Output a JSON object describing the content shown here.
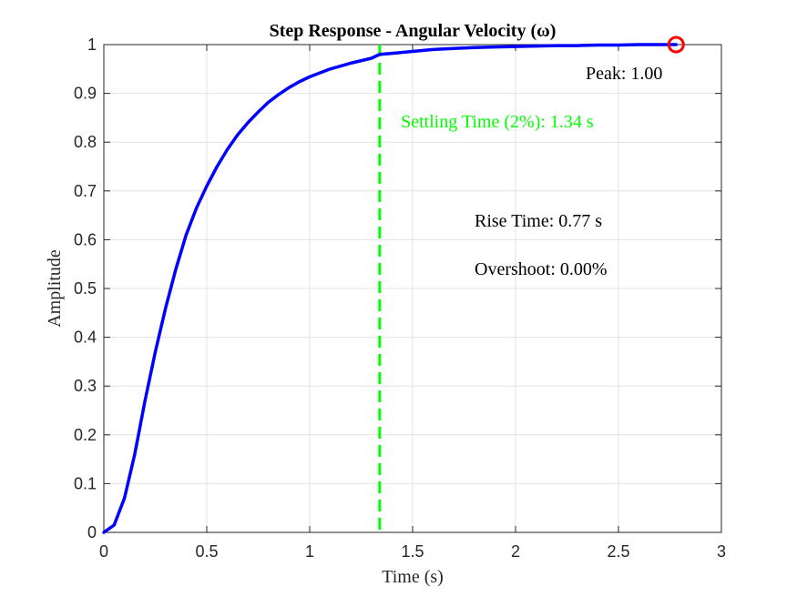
{
  "chart_data": {
    "type": "line",
    "title": "Step Response - Angular Velocity (ω)",
    "xlabel": "Time (s)",
    "ylabel": "Amplitude",
    "xlim": [
      0,
      3
    ],
    "ylim": [
      0,
      1
    ],
    "x_ticks": [
      0,
      0.5,
      1,
      1.5,
      2,
      2.5,
      3
    ],
    "x_tick_labels": [
      "0",
      "0.5",
      "1",
      "1.5",
      "2",
      "2.5",
      "3"
    ],
    "y_ticks": [
      0,
      0.1,
      0.2,
      0.3,
      0.4,
      0.5,
      0.6,
      0.7,
      0.8,
      0.9,
      1
    ],
    "y_tick_labels": [
      "0",
      "0.1",
      "0.2",
      "0.3",
      "0.4",
      "0.5",
      "0.6",
      "0.7",
      "0.8",
      "0.9",
      "1"
    ],
    "grid": true,
    "legend": "none",
    "series": [
      {
        "color": "#0000ff",
        "x": [
          0,
          0.05,
          0.1,
          0.15,
          0.2,
          0.25,
          0.3,
          0.35,
          0.4,
          0.45,
          0.5,
          0.55,
          0.6,
          0.65,
          0.7,
          0.75,
          0.8,
          0.85,
          0.9,
          0.95,
          1.0,
          1.1,
          1.2,
          1.3,
          1.34,
          1.4,
          1.5,
          1.6,
          1.7,
          1.8,
          1.9,
          2.0,
          2.1,
          2.2,
          2.3,
          2.4,
          2.5,
          2.6,
          2.7,
          2.78
        ],
        "y": [
          0,
          0.015,
          0.07,
          0.16,
          0.27,
          0.37,
          0.46,
          0.54,
          0.61,
          0.665,
          0.71,
          0.75,
          0.785,
          0.815,
          0.84,
          0.862,
          0.882,
          0.898,
          0.912,
          0.924,
          0.934,
          0.95,
          0.962,
          0.972,
          0.98,
          0.982,
          0.986,
          0.99,
          0.992,
          0.994,
          0.995,
          0.996,
          0.997,
          0.998,
          0.998,
          0.999,
          0.999,
          1.0,
          1.0,
          1.0
        ]
      }
    ],
    "settling_line": {
      "x": 1.34,
      "color": "#00ff00",
      "style": "dashed"
    },
    "peak_marker": {
      "x": 2.78,
      "y": 1.0,
      "color": "#ff0000",
      "shape": "circle"
    },
    "annotations": {
      "peak": {
        "text": "Peak: 1.00",
        "color": "#000000"
      },
      "settling": {
        "text": "Settling Time (2%): 1.34 s",
        "color": "#00ff00"
      },
      "rise": {
        "text": "Rise Time: 0.77 s",
        "color": "#000000"
      },
      "overshoot": {
        "text": "Overshoot: 0.00%",
        "color": "#000000"
      }
    }
  }
}
